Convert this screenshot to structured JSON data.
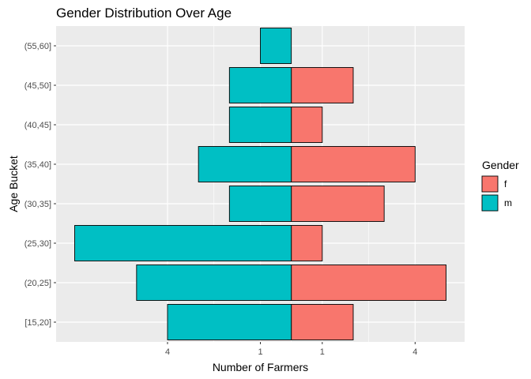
{
  "chart_data": {
    "type": "bar",
    "orientation": "horizontal-diverging",
    "title": "Gender Distribution Over Age",
    "xlabel": "Number of Farmers",
    "ylabel": "Age Bucket",
    "categories": [
      "[15,20]",
      "(20,25]",
      "(25,30]",
      "(30,35]",
      "(35,40]",
      "(40,45]",
      "(45,50]",
      "(55,60]"
    ],
    "series": [
      {
        "name": "f",
        "color": "#F8766D",
        "values": [
          2,
          5,
          1,
          3,
          4,
          1,
          2,
          0
        ]
      },
      {
        "name": "m",
        "color": "#00BFC4",
        "values": [
          4,
          5,
          7,
          2,
          3,
          2,
          2,
          1
        ]
      }
    ],
    "x_ticks": [
      {
        "value": -4,
        "label": "4"
      },
      {
        "value": -1,
        "label": "1"
      },
      {
        "value": 1,
        "label": "1"
      },
      {
        "value": 4,
        "label": "4"
      }
    ],
    "xlim": [
      -7.6,
      5.6
    ],
    "legend": {
      "title": "Gender",
      "position": "right"
    },
    "grid": true,
    "panel_background": "#EBEBEB"
  }
}
